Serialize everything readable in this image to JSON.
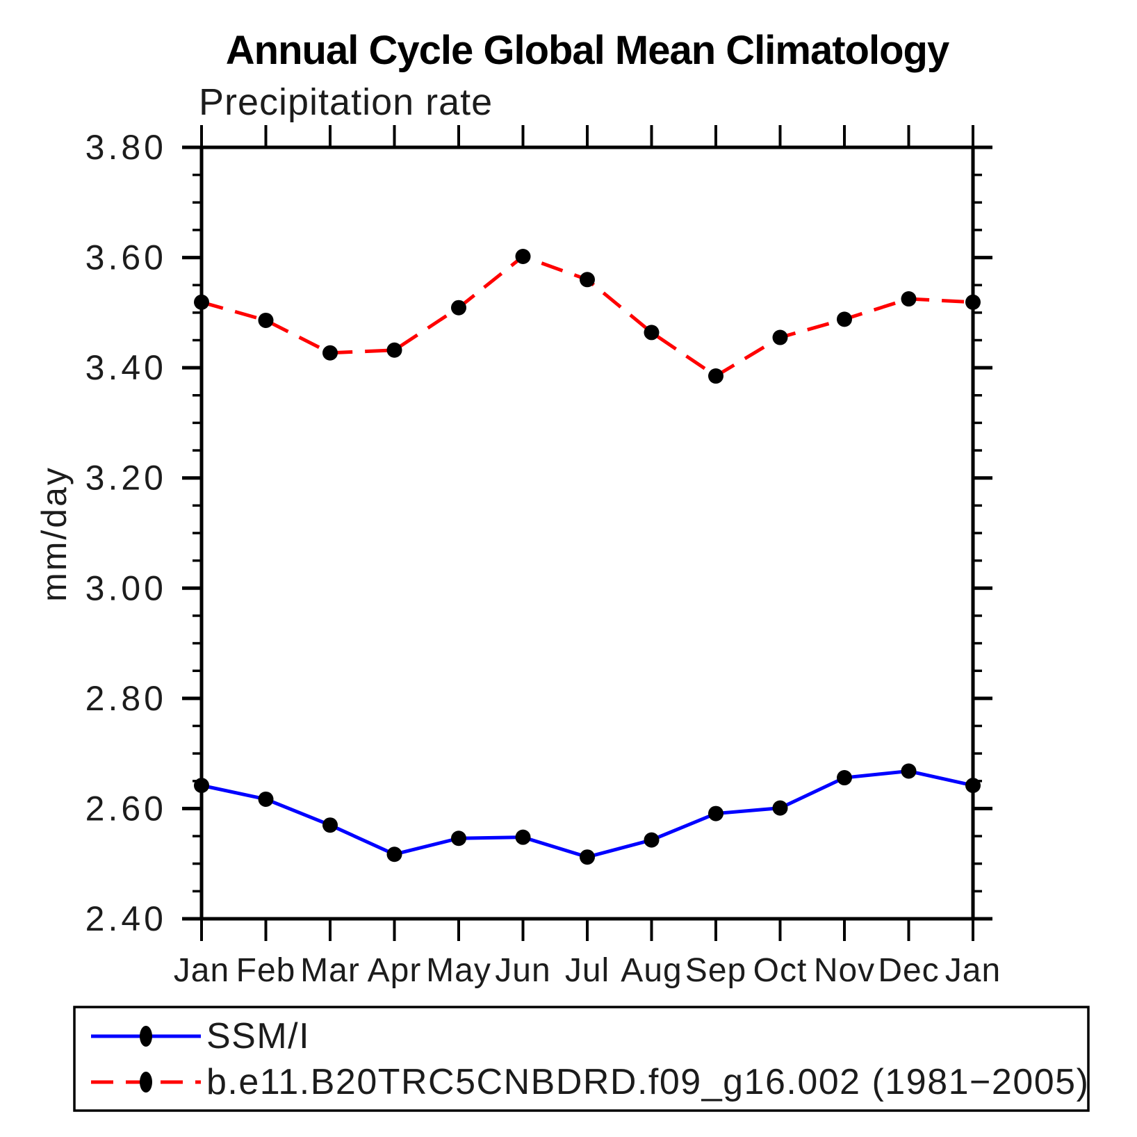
{
  "page": {
    "background": "#ffffff"
  },
  "title": "Annual Cycle Global Mean Climatology",
  "subtitle": "Precipitation rate",
  "chart_data": {
    "type": "line",
    "title": "Annual Cycle Global Mean Climatology",
    "subtitle": "Precipitation rate",
    "xlabel": "",
    "ylabel": "mm/day",
    "categories": [
      "Jan",
      "Feb",
      "Mar",
      "Apr",
      "May",
      "Jun",
      "Jul",
      "Aug",
      "Sep",
      "Oct",
      "Nov",
      "Dec",
      "Jan"
    ],
    "ylim": [
      2.4,
      3.8
    ],
    "ytick_interval": 0.2,
    "yminor_interval": 0.05,
    "ytick_labels": [
      "2.40",
      "2.60",
      "2.80",
      "3.00",
      "3.20",
      "3.40",
      "3.60",
      "3.80"
    ],
    "grid": false,
    "legend_position": "bottom",
    "frame_color": "#000000",
    "series": [
      {
        "name": "SSM/I",
        "color": "#0000ff",
        "style": "solid",
        "marker": "filled-circle",
        "marker_color": "#000000",
        "values": [
          2.642,
          2.617,
          2.57,
          2.517,
          2.546,
          2.548,
          2.512,
          2.543,
          2.591,
          2.601,
          2.656,
          2.668,
          2.642
        ]
      },
      {
        "name": "b.e11.B20TRC5CNBDRD.f09_g16.002 (1981−2005)",
        "color": "#ff0000",
        "style": "dashed",
        "marker": "filled-circle",
        "marker_color": "#000000",
        "values": [
          3.519,
          3.486,
          3.427,
          3.432,
          3.509,
          3.602,
          3.56,
          3.464,
          3.385,
          3.455,
          3.488,
          3.525,
          3.519
        ]
      }
    ]
  }
}
